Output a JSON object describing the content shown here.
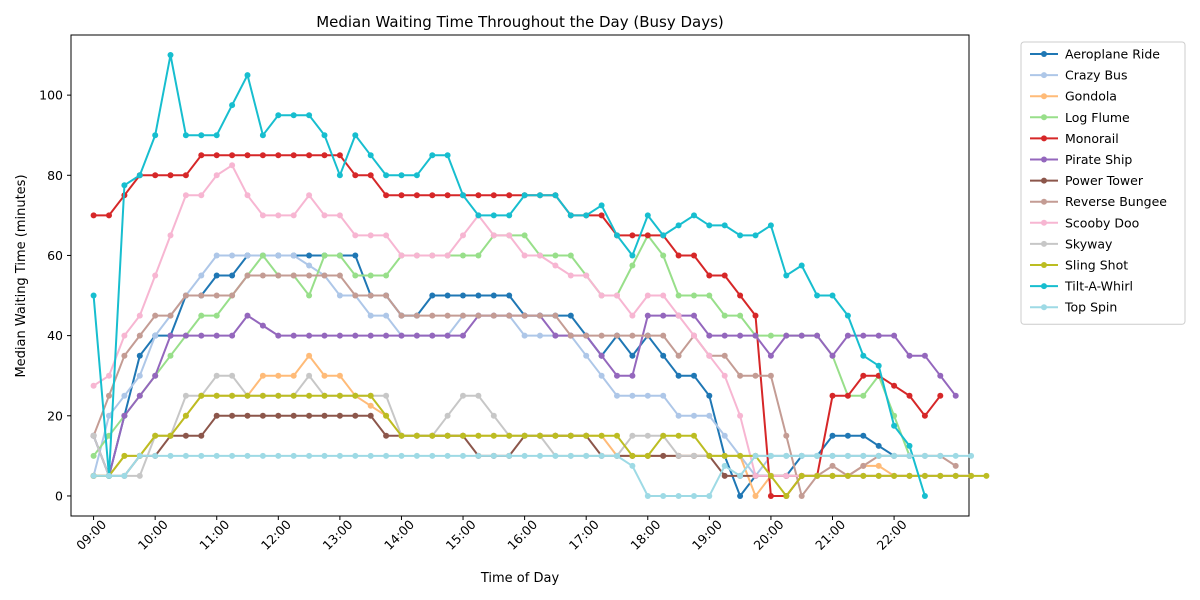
{
  "chart_data": {
    "type": "line",
    "title": "Median Waiting Time Throughout the Day (Busy Days)",
    "xlabel": "Time of Day",
    "ylabel": "Median Waiting Time (minutes)",
    "xlim_minutes": [
      518,
      1393
    ],
    "ylim": [
      -5,
      115
    ],
    "x_ticks": [
      "09:00",
      "10:00",
      "11:00",
      "12:00",
      "13:00",
      "14:00",
      "15:00",
      "16:00",
      "17:00",
      "18:00",
      "19:00",
      "20:00",
      "21:00",
      "22:00"
    ],
    "y_ticks": [
      0,
      20,
      40,
      60,
      80,
      100
    ],
    "legend_position": "outside-right",
    "grid": false,
    "x_start": "09:00",
    "x_step_minutes": 15,
    "series": [
      {
        "name": "Aeroplane Ride",
        "color": "#1f77b4",
        "values": [
          15,
          5,
          20,
          35,
          40,
          40,
          50,
          50,
          55,
          55,
          60,
          60,
          60,
          60,
          60,
          60,
          60,
          60,
          50,
          50,
          45,
          45,
          50,
          50,
          50,
          50,
          50,
          50,
          45,
          45,
          45,
          45,
          40,
          35,
          40,
          35,
          40,
          35,
          30,
          30,
          25,
          10,
          0,
          5,
          5,
          5,
          10,
          10,
          15,
          15,
          15,
          12.5,
          10,
          10
        ]
      },
      {
        "name": "Crazy Bus",
        "color": "#aec7e8",
        "values": [
          5,
          20,
          25,
          30,
          40,
          45,
          50,
          55,
          60,
          60,
          60,
          60,
          60,
          60,
          57.5,
          55,
          50,
          50,
          45,
          45,
          40,
          40,
          40,
          40,
          45,
          45,
          45,
          45,
          40,
          40,
          40,
          40,
          35,
          30,
          25,
          25,
          25,
          25,
          20,
          20,
          20,
          15,
          10,
          5,
          10,
          10,
          10,
          10,
          10,
          10,
          10,
          10,
          10,
          10
        ]
      },
      {
        "name": "Gondola",
        "color": "#ffbb78",
        "values": [
          5,
          5,
          10,
          10,
          15,
          15,
          20,
          25,
          25,
          25,
          25,
          30,
          30,
          30,
          35,
          30,
          30,
          25,
          22.5,
          20,
          15,
          15,
          15,
          15,
          15,
          15,
          15,
          15,
          15,
          15,
          15,
          15,
          15,
          15,
          10,
          10,
          10,
          10,
          10,
          10,
          10,
          10,
          10,
          0,
          5,
          5,
          5,
          5,
          5,
          5,
          7.5,
          7.5,
          5,
          5
        ]
      },
      {
        "name": "Log Flume",
        "color": "#98df8a",
        "values": [
          10,
          15,
          20,
          25,
          30,
          35,
          40,
          45,
          45,
          50,
          55,
          60,
          55,
          55,
          50,
          60,
          60,
          55,
          55,
          55,
          60,
          60,
          60,
          60,
          60,
          60,
          65,
          65,
          65,
          60,
          60,
          60,
          55,
          50,
          50,
          57.5,
          65,
          60,
          50,
          50,
          50,
          45,
          45,
          40,
          40,
          40,
          40,
          40,
          35,
          25,
          25,
          30,
          20,
          10
        ]
      },
      {
        "name": "Monorail",
        "color": "#d62728",
        "values": [
          70,
          70,
          75,
          80,
          80,
          80,
          80,
          85,
          85,
          85,
          85,
          85,
          85,
          85,
          85,
          85,
          85,
          80,
          80,
          75,
          75,
          75,
          75,
          75,
          75,
          75,
          75,
          75,
          75,
          75,
          75,
          70,
          70,
          70,
          65,
          65,
          65,
          65,
          60,
          60,
          55,
          55,
          50,
          45,
          0,
          0,
          5,
          5,
          25,
          25,
          30,
          30,
          27.5,
          25,
          20,
          25
        ]
      },
      {
        "name": "Pirate Ship",
        "color": "#9467bd",
        "values": [
          15,
          5,
          20,
          25,
          30,
          40,
          40,
          40,
          40,
          40,
          45,
          42.5,
          40,
          40,
          40,
          40,
          40,
          40,
          40,
          40,
          40,
          40,
          40,
          40,
          40,
          45,
          45,
          45,
          45,
          45,
          40,
          40,
          40,
          35,
          30,
          30,
          45,
          45,
          45,
          45,
          40,
          40,
          40,
          40,
          35,
          40,
          40,
          40,
          35,
          40,
          40,
          40,
          40,
          35,
          35,
          30,
          25
        ]
      },
      {
        "name": "Power Tower",
        "color": "#8c564b",
        "values": [
          5,
          5,
          5,
          10,
          10,
          15,
          15,
          15,
          20,
          20,
          20,
          20,
          20,
          20,
          20,
          20,
          20,
          20,
          20,
          15,
          15,
          15,
          15,
          15,
          15,
          10,
          10,
          10,
          15,
          15,
          15,
          15,
          15,
          10,
          10,
          10,
          10,
          10,
          10,
          10,
          10,
          5,
          5,
          5,
          5,
          5,
          5,
          5,
          5,
          5,
          5,
          5,
          5,
          5,
          5,
          5,
          5,
          5
        ]
      },
      {
        "name": "Reverse Bungee",
        "color": "#c49c94",
        "values": [
          15,
          25,
          35,
          40,
          45,
          45,
          50,
          50,
          50,
          50,
          55,
          55,
          55,
          55,
          55,
          55,
          55,
          50,
          50,
          50,
          45,
          45,
          45,
          45,
          45,
          45,
          45,
          45,
          45,
          45,
          45,
          40,
          40,
          40,
          40,
          40,
          40,
          40,
          35,
          40,
          35,
          35,
          30,
          30,
          30,
          15,
          0,
          5,
          7.5,
          5,
          7.5,
          10,
          10,
          10,
          10,
          10,
          7.5
        ]
      },
      {
        "name": "Scooby Doo",
        "color": "#f7b6d2",
        "values": [
          27.5,
          30,
          40,
          45,
          55,
          65,
          75,
          75,
          80,
          82.5,
          75,
          70,
          70,
          70,
          75,
          70,
          70,
          65,
          65,
          65,
          60,
          60,
          60,
          60,
          65,
          70,
          65,
          65,
          60,
          60,
          57.5,
          55,
          55,
          50,
          50,
          45,
          50,
          50,
          45,
          40,
          35,
          30,
          20,
          5,
          5,
          5,
          5,
          5,
          5,
          5,
          5,
          5,
          5,
          5,
          5,
          5,
          5,
          5
        ]
      },
      {
        "name": "Skyway",
        "color": "#c7c7c7",
        "values": [
          15,
          5,
          5,
          5,
          15,
          15,
          25,
          25,
          30,
          30,
          25,
          25,
          25,
          25,
          30,
          25,
          25,
          25,
          25,
          25,
          15,
          15,
          15,
          20,
          25,
          25,
          20,
          15,
          15,
          15,
          10,
          10,
          10,
          10,
          10,
          15,
          15,
          15,
          10,
          10,
          10,
          10,
          10,
          10,
          10,
          10,
          10,
          10,
          10,
          10,
          10,
          10,
          10,
          10,
          10,
          10
        ]
      },
      {
        "name": "Sling Shot",
        "color": "#bcbd22",
        "values": [
          5,
          5,
          10,
          10,
          15,
          15,
          20,
          25,
          25,
          25,
          25,
          25,
          25,
          25,
          25,
          25,
          25,
          25,
          25,
          20,
          15,
          15,
          15,
          15,
          15,
          15,
          15,
          15,
          15,
          15,
          15,
          15,
          15,
          15,
          15,
          10,
          10,
          15,
          15,
          15,
          10,
          10,
          10,
          10,
          5,
          0,
          5,
          5,
          5,
          5,
          5,
          5,
          5,
          5,
          5,
          5,
          5,
          5,
          5
        ]
      },
      {
        "name": "Tilt-A-Whirl",
        "color": "#17becf",
        "values": [
          50,
          5,
          77.5,
          80,
          90,
          110,
          90,
          90,
          90,
          97.5,
          105,
          90,
          95,
          95,
          95,
          90,
          80,
          90,
          85,
          80,
          80,
          80,
          85,
          85,
          75,
          70,
          70,
          70,
          75,
          75,
          75,
          70,
          70,
          72.5,
          65,
          60,
          70,
          65,
          67.5,
          70,
          67.5,
          67.5,
          65,
          65,
          67.5,
          55,
          57.5,
          50,
          50,
          45,
          35,
          32.5,
          17.5,
          12.5,
          0
        ]
      },
      {
        "name": "Top Spin",
        "color": "#9edae5",
        "values": [
          5,
          5,
          5,
          10,
          10,
          10,
          10,
          10,
          10,
          10,
          10,
          10,
          10,
          10,
          10,
          10,
          10,
          10,
          10,
          10,
          10,
          10,
          10,
          10,
          10,
          10,
          10,
          10,
          10,
          10,
          10,
          10,
          10,
          10,
          10,
          7.5,
          0,
          0,
          0,
          0,
          0,
          7.5,
          5,
          10,
          10,
          10,
          10,
          10,
          10,
          10,
          10,
          10,
          10,
          10,
          10,
          10,
          10,
          10
        ]
      }
    ]
  }
}
